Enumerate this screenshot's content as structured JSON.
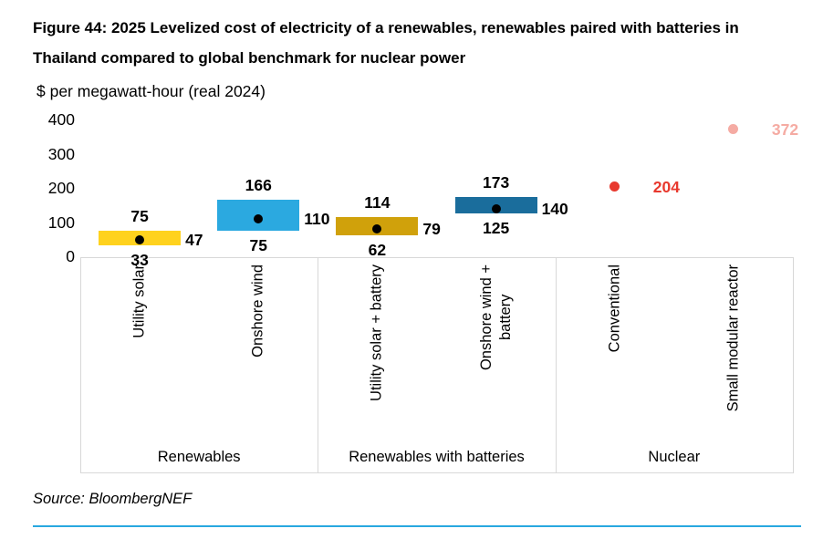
{
  "title": "Figure 44: 2025 Levelized cost of electricity of a renewables, renewables paired with batteries in Thailand compared to global benchmark for nuclear power",
  "subtitle": "$ per megawatt-hour (real 2024)",
  "source": "Source: BloombergNEF",
  "colors": {
    "accent_rule": "#29A8E0",
    "grid": "#D8D8D8",
    "utility_solar": "#FFD21E",
    "onshore_wind": "#2BA9E0",
    "utility_solar_battery": "#D0A10B",
    "onshore_wind_battery": "#1A6D9C",
    "nuclear_conventional": "#E8392E",
    "nuclear_smr": "#F5ABA3"
  },
  "chart_data": {
    "type": "bar",
    "subtype": "range-bar-with-midpoint",
    "title": "2025 Levelized cost of electricity of a renewables, renewables paired with batteries in Thailand compared to global benchmark for nuclear power",
    "ylabel": "$ per megawatt-hour (real 2024)",
    "ylim": [
      0,
      400
    ],
    "yticks": [
      0,
      100,
      200,
      300,
      400
    ],
    "grid": false,
    "groups": [
      {
        "label": "Renewables",
        "items": [
          {
            "category": "Utility solar",
            "low": 33,
            "high": 75,
            "mid": 47,
            "color": "#FFD21E"
          },
          {
            "category": "Onshore wind",
            "low": 75,
            "high": 166,
            "mid": 110,
            "color": "#2BA9E0"
          }
        ]
      },
      {
        "label": "Renewables with batteries",
        "items": [
          {
            "category": "Utility solar + battery",
            "low": 62,
            "high": 114,
            "mid": 79,
            "color": "#D0A10B"
          },
          {
            "category": "Onshore wind +\nbattery",
            "low": 125,
            "high": 173,
            "mid": 140,
            "color": "#1A6D9C"
          }
        ]
      },
      {
        "label": "Nuclear",
        "items": [
          {
            "category": "Conventional",
            "value": 204,
            "color": "#E8392E"
          },
          {
            "category": "Small modular reactor",
            "value": 372,
            "color": "#F5ABA3"
          }
        ]
      }
    ]
  }
}
